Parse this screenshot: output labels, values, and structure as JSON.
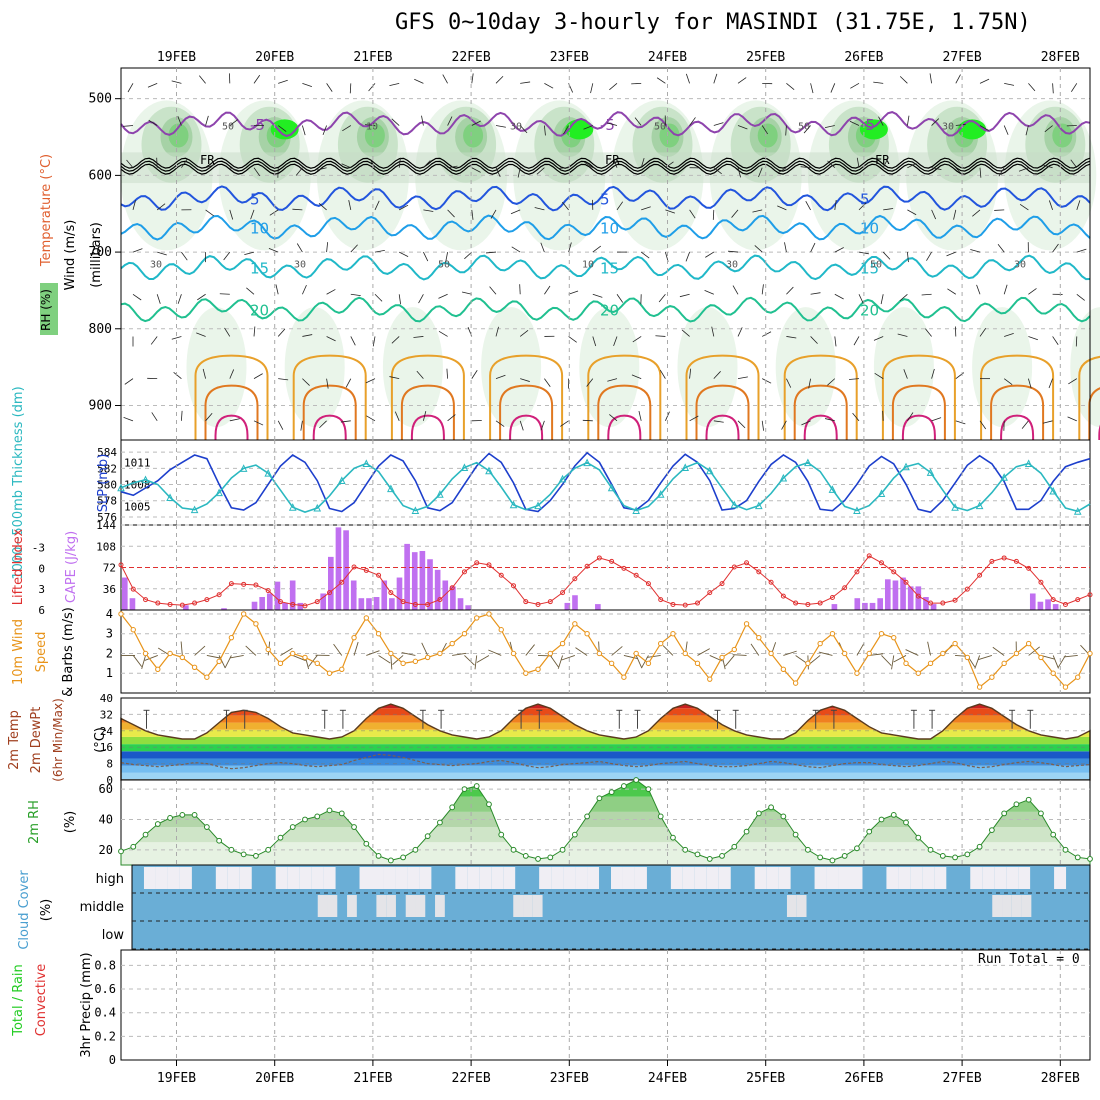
{
  "header": {
    "title": "GFS 0~10day 3-hourly for MASINDI (31.75E, 1.75N)"
  },
  "dates": [
    "19FEB",
    "20FEB",
    "21FEB",
    "22FEB",
    "23FEB",
    "24FEB",
    "25FEB",
    "26FEB",
    "27FEB",
    "28FEB"
  ],
  "chart_data": [
    {
      "type": "heatmap",
      "panel": "cross-section",
      "ylabel": "(millibars)",
      "legend": [
        "Wind (m/s)",
        "Temperature (°C)",
        "RH (%)"
      ],
      "yticks": [
        500,
        600,
        700,
        800,
        900
      ],
      "ylim": [
        460,
        945
      ],
      "freezing_level_label": "FR",
      "freezing_level_hpa": 588,
      "isotherms": [
        {
          "label": "-5",
          "hpa": 533,
          "color": "#8e44ad"
        },
        {
          "label": "5",
          "hpa": 630,
          "color": "#2255dd"
        },
        {
          "label": "10",
          "hpa": 668,
          "color": "#1f9ee8"
        },
        {
          "label": "15",
          "hpa": 720,
          "color": "#20b8c8"
        },
        {
          "label": "20",
          "hpa": 775,
          "color": "#20c090"
        }
      ],
      "contour_labels": [
        "30",
        "50",
        "30",
        "10",
        "50",
        "30",
        "10",
        "50",
        "30",
        "50",
        "50",
        "30",
        "30"
      ],
      "rh_colors": [
        "#eaf5ea",
        "#c9e3c9",
        "#a6d2a6",
        "#7fd07f",
        "#22ee22"
      ]
    },
    {
      "type": "line",
      "panel": "thickness-slp",
      "ylabel_left": "1000~500mb Thickness (dm)",
      "ylabel_right": "SLP (mb)",
      "yticks_left": [
        576,
        578,
        580,
        582,
        584
      ],
      "yticks_right": [
        1005,
        1008,
        1011
      ],
      "series": [
        {
          "name": "SLP (mb)",
          "color": "#1d3fcc",
          "axis": "right",
          "values": [
            1007.0,
            1006.5,
            1007.5,
            1008.5,
            1010.0,
            1011.0,
            1012.0,
            1011.5,
            1008.0,
            1004.8,
            1004.5,
            1005.5,
            1008.0,
            1010.5,
            1012.0,
            1011.0,
            1008.5,
            1004.7,
            1004.3,
            1005.5,
            1008.0,
            1010.5,
            1012.0,
            1011.2,
            1008.5,
            1004.8,
            1004.4,
            1005.5,
            1008.0,
            1010.5,
            1012.2,
            1011.0,
            1008.2,
            1004.6,
            1004.3,
            1005.8,
            1008.0,
            1010.5,
            1012.3,
            1011.0,
            1008.0,
            1004.8,
            1004.5,
            1005.8,
            1008.2,
            1010.5,
            1012.1,
            1011.0,
            1008.5,
            1004.5,
            1004.7,
            1005.8,
            1008.4,
            1010.7,
            1012.0,
            1011.0,
            1008.4,
            1004.6,
            1004.4,
            1005.8,
            1008.0,
            1010.5,
            1011.8,
            1010.8,
            1008.0,
            1004.6,
            1004.2,
            1005.8,
            1008.2,
            1010.6,
            1011.9,
            1010.8,
            1008.4,
            1004.6,
            1004.6,
            1005.8,
            1008.4,
            1010.4,
            1011.0,
            1011.5
          ]
        },
        {
          "name": "1000~500mb Thickness (dm)",
          "color": "#2bb8c0",
          "axis": "left",
          "values": [
            579.6,
            580.2,
            580.6,
            580.0,
            578.4,
            577.1,
            576.9,
            577.6,
            579.0,
            580.8,
            582.0,
            582.4,
            581.4,
            579.3,
            577.2,
            576.6,
            577.1,
            578.6,
            580.5,
            582.0,
            582.6,
            581.6,
            579.5,
            577.4,
            576.8,
            577.3,
            578.8,
            580.7,
            582.1,
            582.7,
            581.7,
            579.7,
            577.5,
            576.9,
            577.4,
            578.8,
            580.7,
            582.0,
            582.7,
            581.8,
            579.6,
            577.4,
            576.8,
            577.3,
            578.8,
            580.7,
            582.1,
            582.7,
            581.7,
            579.6,
            577.5,
            576.9,
            577.4,
            578.9,
            580.8,
            582.2,
            582.7,
            581.6,
            579.4,
            577.3,
            576.8,
            577.4,
            578.9,
            580.8,
            582.2,
            582.6,
            581.5,
            579.3,
            577.2,
            576.8,
            577.4,
            579.0,
            580.9,
            582.2,
            582.6,
            581.4,
            579.2,
            577.1,
            576.7,
            577.6
          ]
        }
      ]
    },
    {
      "type": "bar",
      "panel": "cape-li",
      "ylabel_left": "Lifted Index",
      "ylabel_right": "CAPE (J/kg)",
      "yticks_left": [
        "-3",
        "0",
        "3",
        "6"
      ],
      "yticks_right": [
        36,
        72,
        108,
        144
      ],
      "series": [
        {
          "name": "CAPE (J/kg)",
          "color": "#c070f0",
          "values": [
            55,
            20,
            0,
            0,
            0,
            0,
            0,
            0,
            8,
            0,
            0,
            0,
            0,
            3,
            0,
            0,
            0,
            14,
            22,
            28,
            48,
            12,
            50,
            12,
            0,
            0,
            28,
            90,
            140,
            135,
            50,
            20,
            20,
            22,
            50,
            20,
            55,
            112,
            98,
            100,
            86,
            68,
            50,
            40,
            20,
            8,
            0,
            0,
            0,
            0,
            0,
            0,
            0,
            0,
            0,
            0,
            0,
            0,
            12,
            25,
            0,
            0,
            10,
            0,
            0,
            0,
            0,
            0,
            0,
            0,
            0,
            0,
            0,
            0,
            0,
            0,
            0,
            0,
            0,
            0,
            0,
            0,
            0,
            0,
            0,
            0,
            0,
            0,
            0,
            0,
            0,
            0,
            0,
            10,
            0,
            0,
            20,
            12,
            12,
            20,
            52,
            50,
            55,
            40,
            40,
            22,
            10,
            0,
            0,
            0,
            0,
            0,
            0,
            0,
            0,
            0,
            0,
            0,
            0,
            28,
            14,
            18,
            10,
            0,
            0,
            0,
            0
          ]
        },
        {
          "name": "Lifted Index",
          "color": "#e03030",
          "values": [
            -0.5,
            3,
            4.5,
            5,
            5.2,
            5.3,
            5.0,
            4.5,
            3.8,
            2.2,
            2.3,
            2.4,
            3.2,
            4.8,
            5.2,
            5.4,
            4.8,
            3.5,
            2.0,
            -0.2,
            0.3,
            1.0,
            3.5,
            4.8,
            5.2,
            5.2,
            4.5,
            2.8,
            0.5,
            -0.8,
            -0.5,
            1.0,
            2.5,
            4.8,
            5.2,
            4.8,
            3.5,
            1.5,
            -0.3,
            -1.5,
            -1.0,
            0.0,
            1.0,
            2.2,
            4.5,
            5.2,
            5.3,
            5.0,
            3.5,
            2.2,
            -0.2,
            -0.8,
            0.5,
            2.0,
            4.0,
            5.0,
            5.2,
            5.0,
            4.2,
            2.8,
            0.5,
            -1.8,
            -0.8,
            0.5,
            2.0,
            4.0,
            5.0,
            5.0,
            4.6,
            3.0,
            1.0,
            -1.0,
            -1.5,
            -1.0,
            0.0,
            2.0,
            4.5,
            5.2,
            4.5,
            3.8
          ]
        },
        {
          "name": "CAPE=72 reference",
          "color": "#e03030",
          "values": [
            72
          ]
        }
      ]
    },
    {
      "type": "line",
      "panel": "wind10m",
      "ylabel": "10m Wind Speed & Barbs (m/s)",
      "yticks": [
        1,
        2,
        3,
        4
      ],
      "ylim": [
        0,
        4.2
      ],
      "series": [
        {
          "name": "10m Wind Speed",
          "color": "#e8941a",
          "values": [
            4.0,
            3.2,
            2.0,
            1.2,
            2.0,
            1.8,
            1.3,
            0.8,
            1.6,
            2.8,
            4.0,
            3.5,
            2.2,
            1.5,
            2.0,
            1.8,
            1.5,
            1.0,
            1.2,
            2.8,
            3.8,
            3.0,
            2.0,
            1.5,
            1.6,
            1.8,
            2.0,
            2.5,
            3.0,
            3.8,
            4.0,
            3.2,
            2.0,
            1.0,
            1.2,
            2.0,
            2.5,
            3.5,
            3.0,
            2.0,
            1.5,
            0.8,
            2.0,
            1.5,
            2.5,
            3.0,
            2.0,
            1.5,
            0.7,
            1.8,
            2.2,
            3.5,
            2.8,
            2.0,
            1.2,
            0.5,
            1.5,
            2.5,
            3.0,
            2.0,
            1.0,
            2.0,
            3.0,
            2.8,
            1.5,
            1.0,
            1.5,
            2.0,
            2.5,
            1.8,
            0.3,
            0.8,
            1.5,
            2.0,
            2.5,
            1.8,
            1.0,
            0.3,
            0.8,
            2.0
          ]
        }
      ]
    },
    {
      "type": "area",
      "panel": "temp2m",
      "ylabel": "2m Temp 2m DewPt (6hr Min/Max) (°C)",
      "yticks": [
        0,
        8,
        16,
        24,
        32,
        40
      ],
      "ylim": [
        0,
        40
      ],
      "series": [
        {
          "name": "2m Temp",
          "color": "#5a3a1e",
          "values": [
            30,
            27,
            24,
            22,
            21,
            20,
            20,
            23,
            28,
            33,
            34,
            33,
            30,
            26,
            23,
            22,
            21,
            20,
            21,
            24,
            30,
            35,
            37,
            35,
            31,
            27,
            24,
            22,
            21,
            20,
            21,
            24,
            30,
            35,
            37,
            35,
            31,
            27,
            24,
            22,
            21,
            20,
            21,
            24,
            30,
            35,
            37,
            35,
            31,
            27,
            24,
            22,
            21,
            20,
            20,
            23,
            29,
            34,
            36,
            34,
            30,
            26,
            23,
            22,
            21,
            20,
            20,
            24,
            30,
            35,
            37,
            35,
            31,
            27,
            24,
            22,
            21,
            20,
            21,
            24
          ]
        },
        {
          "name": "2m DewPt",
          "color": "#7a6050",
          "values": [
            8.5,
            7.5,
            7.0,
            6.5,
            7.0,
            7.5,
            8.5,
            8.0,
            6.5,
            5.5,
            6.0,
            7.0,
            8.0,
            8.5,
            8.0,
            7.0,
            6.5,
            7.0,
            7.5,
            9.5,
            11.0,
            12.5,
            12.0,
            11.0,
            9.5,
            8.0,
            7.5,
            7.0,
            7.5,
            8.0,
            9.0,
            9.5,
            8.5,
            7.0,
            6.0,
            6.5,
            7.5,
            8.0,
            8.5,
            9.0,
            8.0,
            7.0,
            6.5,
            7.0,
            8.0,
            8.5,
            9.0,
            8.0,
            7.0,
            6.5,
            6.5,
            7.0,
            8.0,
            9.0,
            8.5,
            7.5,
            6.5,
            6.0,
            7.0,
            8.0,
            8.5,
            8.5,
            7.5,
            7.0,
            6.5,
            7.0,
            8.0,
            9.0,
            8.5,
            7.0,
            6.0,
            6.5,
            7.5,
            8.5,
            9.0,
            8.5,
            7.5,
            6.5,
            7.0,
            7.5
          ]
        }
      ],
      "color_bands": [
        "#9cd4f4",
        "#74bdf0",
        "#3d8cdc",
        "#1a58c8",
        "#2cd050",
        "#90de40",
        "#e8ea4a",
        "#f0b030",
        "#f08020",
        "#e84a18",
        "#c82020",
        "#9a1010"
      ]
    },
    {
      "type": "area",
      "panel": "rh2m",
      "ylabel": "2m RH (%)",
      "yticks": [
        20,
        40,
        60
      ],
      "ylim": [
        10,
        66
      ],
      "series": [
        {
          "name": "2m RH",
          "color": "#2a8a2a",
          "values": [
            19,
            22,
            30,
            37,
            41,
            43,
            43,
            35,
            26,
            20,
            17,
            16,
            20,
            28,
            35,
            40,
            42,
            46,
            44,
            35,
            24,
            16,
            13,
            15,
            20,
            29,
            38,
            48,
            60,
            62,
            50,
            30,
            20,
            16,
            14,
            15,
            20,
            30,
            42,
            54,
            58,
            62,
            66,
            60,
            42,
            28,
            20,
            17,
            14,
            16,
            22,
            32,
            44,
            48,
            42,
            30,
            20,
            15,
            13,
            16,
            21,
            32,
            40,
            43,
            38,
            28,
            20,
            16,
            15,
            17,
            22,
            33,
            44,
            50,
            53,
            44,
            30,
            20,
            15,
            14
          ]
        }
      ]
    },
    {
      "type": "heatmap",
      "panel": "cloud",
      "ylabel": "Cloud Cover (%)",
      "rows": [
        "high",
        "middle",
        "low"
      ],
      "colors": {
        "cloud": "#6aaed6",
        "clear": "#f0eef4"
      },
      "high_clear": [
        0,
        1,
        1,
        1,
        1,
        0,
        0,
        1,
        1,
        1,
        0,
        0,
        1,
        1,
        1,
        1,
        1,
        0,
        0,
        1,
        1,
        1,
        1,
        1,
        1,
        0,
        0,
        1,
        1,
        1,
        1,
        1,
        0,
        0,
        1,
        1,
        1,
        1,
        1,
        0,
        1,
        1,
        1,
        0,
        0,
        1,
        1,
        1,
        1,
        1,
        0,
        0,
        1,
        1,
        1,
        0,
        0,
        1,
        1,
        1,
        1,
        0,
        0,
        1,
        1,
        1,
        1,
        1,
        0,
        0,
        1,
        1,
        1,
        1,
        1,
        0,
        0,
        1,
        0,
        0
      ],
      "middle_clear": [
        0,
        0,
        0,
        0,
        0,
        0,
        0,
        0,
        0,
        0,
        0,
        0,
        0,
        0,
        0,
        0,
        0,
        0,
        0,
        1,
        1,
        0,
        1,
        0,
        0,
        1,
        1,
        0,
        1,
        1,
        0,
        1,
        0,
        0,
        0,
        0,
        0,
        0,
        0,
        1,
        1,
        1,
        0,
        0,
        0,
        0,
        0,
        0,
        0,
        0,
        0,
        0,
        0,
        0,
        0,
        0,
        0,
        0,
        0,
        0,
        0,
        0,
        0,
        0,
        0,
        0,
        0,
        1,
        1,
        0,
        0,
        0,
        0,
        0,
        0,
        0,
        0,
        0,
        0,
        0,
        0,
        0,
        0,
        0,
        0,
        0,
        0,
        0,
        1,
        1,
        1,
        1,
        0,
        0,
        0,
        0,
        0,
        0
      ]
    },
    {
      "type": "bar",
      "panel": "precip",
      "ylabel": "3hr Precip (mm)",
      "legend": [
        "Total / Rain",
        "Convective"
      ],
      "run_total": "Run Total = 0",
      "yticks": [
        "0",
        "0.2",
        "0.4",
        "0.6",
        "0.8"
      ],
      "ylim": [
        0,
        0.93
      ],
      "series": [
        {
          "name": "Total / Rain",
          "color": "#22cc22",
          "values": []
        },
        {
          "name": "Convective",
          "color": "#e03030",
          "values": []
        }
      ]
    }
  ]
}
